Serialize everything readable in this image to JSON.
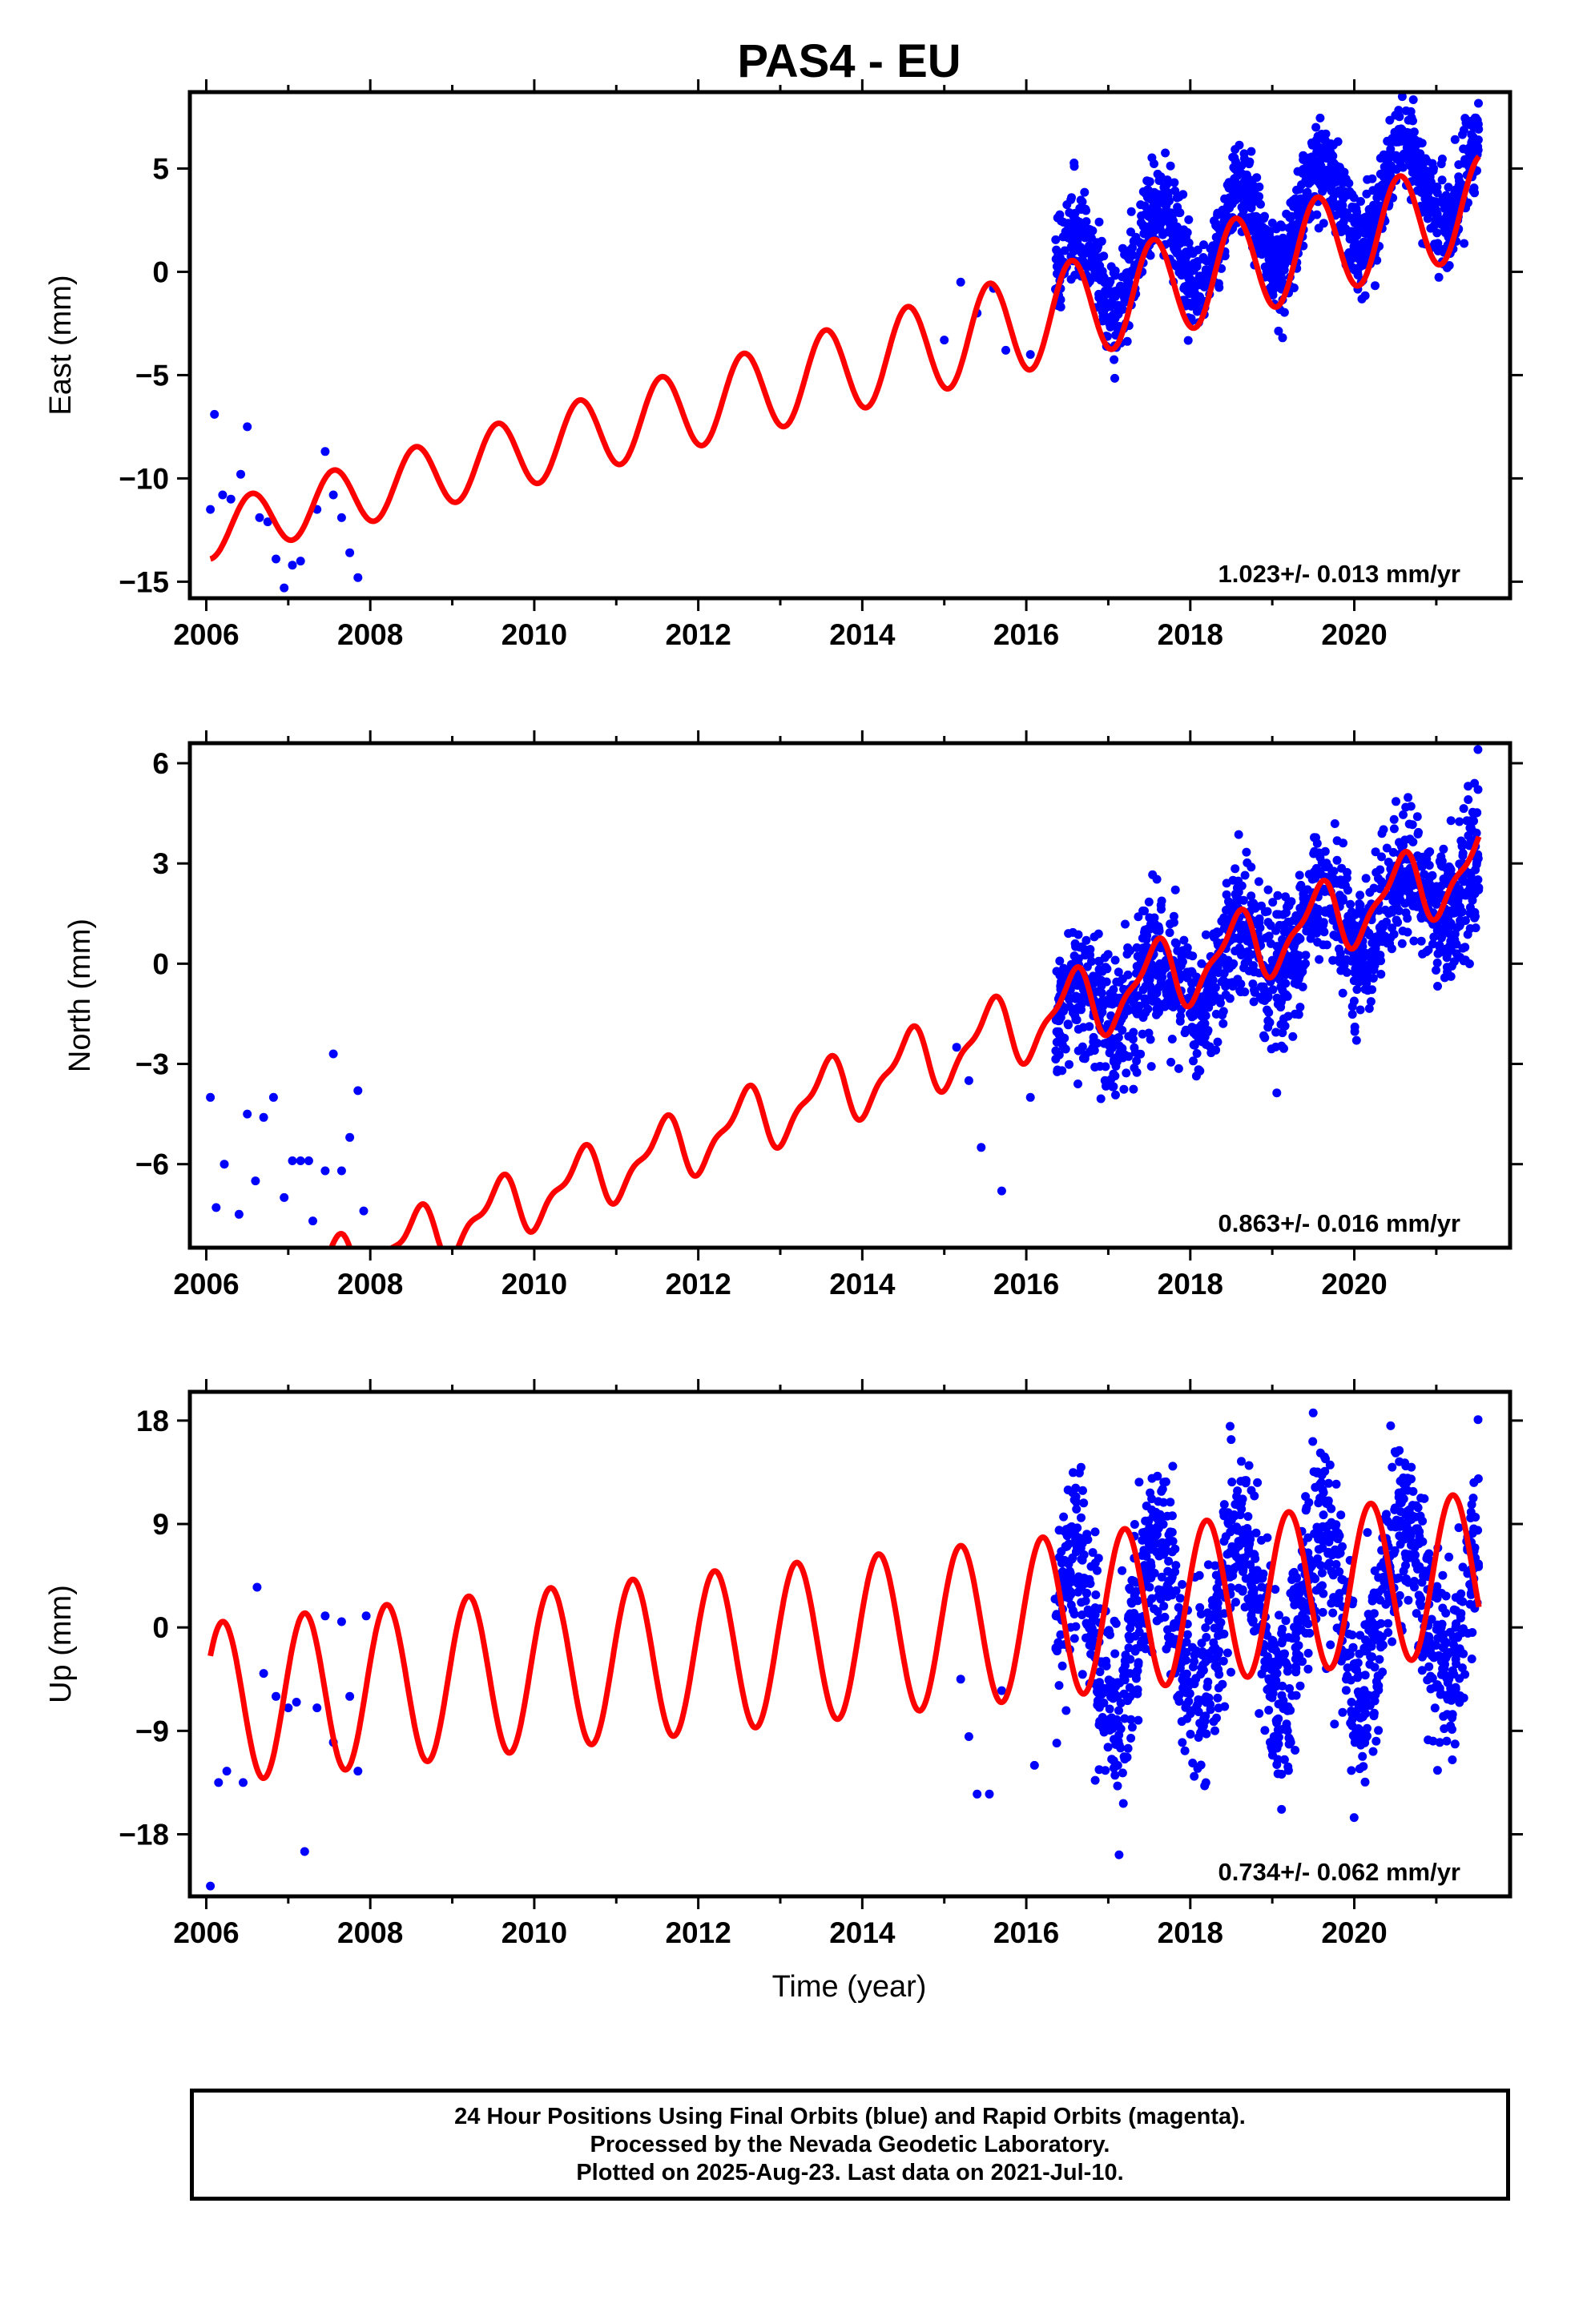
{
  "title": "PAS4 - EU",
  "xlabel": "Time (year)",
  "footer": {
    "line1": "24 Hour Positions Using Final Orbits (blue) and Rapid Orbits (magenta).",
    "line2": "Processed by the Nevada Geodetic Laboratory.",
    "line3": "Plotted on 2025-Aug-23. Last data on 2021-Jul-10."
  },
  "colors": {
    "points": "#0000ff",
    "fit": "#ff0000",
    "frame": "#000000"
  },
  "chart_data": [
    {
      "type": "scatter",
      "title": "PAS4 - EU",
      "ylabel": "East (mm)",
      "xlabel": "",
      "xlim": [
        2005.8,
        2021.9
      ],
      "ylim": [
        -15.8,
        8.7
      ],
      "xticks": [
        2006,
        2008,
        2010,
        2012,
        2014,
        2016,
        2018,
        2020
      ],
      "yticks": [
        -15,
        -10,
        -5,
        0,
        5
      ],
      "ytick_labels": [
        "−15",
        "−10",
        "−5",
        "0",
        "5"
      ],
      "rate_label": "1.023+/- 0.013 mm/yr",
      "series": [
        {
          "kind": "points",
          "x": [
            2006.05,
            2006.1,
            2006.2,
            2006.3,
            2006.42,
            2006.5,
            2006.65,
            2006.75,
            2006.85,
            2006.95,
            2007.05,
            2007.15,
            2007.35,
            2007.45,
            2007.55,
            2007.65,
            2007.75,
            2007.85,
            2015.0,
            2015.2,
            2015.4,
            2015.6,
            2015.75,
            2016.05
          ],
          "y": [
            -11.5,
            -6.9,
            -10.8,
            -11.0,
            -9.8,
            -7.5,
            -11.9,
            -12.1,
            -13.9,
            -15.3,
            -14.2,
            -14.0,
            -11.5,
            -8.7,
            -10.8,
            -11.9,
            -13.6,
            -14.8,
            -3.3,
            -0.5,
            -2.0,
            -0.8,
            -3.8,
            -4.0
          ]
        },
        {
          "kind": "dense",
          "start": 2016.35,
          "end": 2021.52,
          "count": 1500,
          "slope": 1.023,
          "intercept": -0.3,
          "amp": 2.2,
          "phase": 1.57,
          "noise": 1.1
        },
        {
          "kind": "fit",
          "start": 2006.05,
          "end": 2021.52,
          "slope": 1.023,
          "intercept": -12.6,
          "amp": 2.4,
          "phase": 0.0,
          "taper_to": 2016.3,
          "amp_start": 1.3
        }
      ]
    },
    {
      "type": "scatter",
      "title": "",
      "ylabel": "North (mm)",
      "xlabel": "",
      "xlim": [
        2005.8,
        2021.9
      ],
      "ylim": [
        -8.5,
        6.6
      ],
      "xticks": [
        2006,
        2008,
        2010,
        2012,
        2014,
        2016,
        2018,
        2020
      ],
      "yticks": [
        -6,
        -3,
        0,
        3,
        6
      ],
      "ytick_labels": [
        "−6",
        "−3",
        "0",
        "3",
        "6"
      ],
      "rate_label": "0.863+/- 0.016 mm/yr",
      "series": [
        {
          "kind": "points",
          "x": [
            2006.05,
            2006.12,
            2006.22,
            2006.4,
            2006.5,
            2006.6,
            2006.7,
            2006.82,
            2006.95,
            2007.05,
            2007.15,
            2007.25,
            2007.3,
            2007.45,
            2007.55,
            2007.65,
            2007.75,
            2007.85,
            2007.92,
            2015.15,
            2015.3,
            2015.45,
            2015.7,
            2016.05
          ],
          "y": [
            -4.0,
            -7.3,
            -6.0,
            -7.5,
            -4.5,
            -6.5,
            -4.6,
            -4.0,
            -7.0,
            -5.9,
            -5.9,
            -5.9,
            -7.7,
            -6.2,
            -2.7,
            -6.2,
            -5.2,
            -3.8,
            -7.4,
            -2.5,
            -3.5,
            -5.5,
            -6.8,
            -4.0
          ]
        },
        {
          "kind": "dense",
          "start": 2016.35,
          "end": 2021.52,
          "count": 1500,
          "slope": 0.863,
          "intercept": -1.8,
          "amp": 0.9,
          "phase": 1.57,
          "noise": 1.0
        },
        {
          "kind": "fit",
          "start": 2006.05,
          "end": 2021.52,
          "slope": 0.863,
          "intercept": -10.4,
          "amp": 1.0,
          "phase": 0.0,
          "taper_to": 2016.3,
          "amp_start": 0.7,
          "semiannual": 0.35
        }
      ]
    },
    {
      "type": "scatter",
      "title": "",
      "ylabel": "Up (mm)",
      "xlabel": "Time (year)",
      "xlim": [
        2005.8,
        2021.9
      ],
      "ylim": [
        -23.4,
        20.5
      ],
      "xticks": [
        2006,
        2008,
        2010,
        2012,
        2014,
        2016,
        2018,
        2020
      ],
      "yticks": [
        -18,
        -9,
        0,
        9,
        18
      ],
      "ytick_labels": [
        "−18",
        "−9",
        "0",
        "9",
        "18"
      ],
      "rate_label": "0.734+/- 0.062 mm/yr",
      "series": [
        {
          "kind": "points",
          "x": [
            2006.05,
            2006.15,
            2006.25,
            2006.45,
            2006.62,
            2006.7,
            2006.85,
            2007.0,
            2007.1,
            2007.2,
            2007.35,
            2007.45,
            2007.55,
            2007.65,
            2007.75,
            2007.85,
            2007.95,
            2015.2,
            2015.3,
            2015.4,
            2015.55,
            2015.7,
            2016.1
          ],
          "y": [
            -22.5,
            -13.5,
            -12.5,
            -13.5,
            3.5,
            -4.0,
            -6.0,
            -7.0,
            -6.5,
            -19.5,
            -7.0,
            1.0,
            -10.0,
            0.5,
            -6.0,
            -12.5,
            1.0,
            -4.5,
            -9.5,
            -14.5,
            -14.5,
            -5.5,
            -12.0
          ]
        },
        {
          "kind": "dense",
          "start": 2016.35,
          "end": 2021.52,
          "count": 1500,
          "slope": 0.734,
          "intercept": -1.0,
          "amp": 7.0,
          "phase": 1.57,
          "noise": 4.0
        },
        {
          "kind": "fit",
          "start": 2006.05,
          "end": 2021.52,
          "slope": 0.734,
          "intercept": -6.6,
          "amp": 7.0,
          "phase": 2.2,
          "taper_to": 2016.3,
          "amp_start": 7.0
        }
      ]
    }
  ]
}
